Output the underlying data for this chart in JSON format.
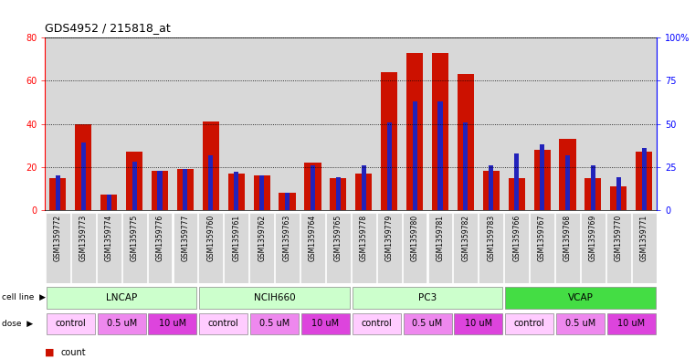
{
  "title": "GDS4952 / 215818_at",
  "samples": [
    "GSM1359772",
    "GSM1359773",
    "GSM1359774",
    "GSM1359775",
    "GSM1359776",
    "GSM1359777",
    "GSM1359760",
    "GSM1359761",
    "GSM1359762",
    "GSM1359763",
    "GSM1359764",
    "GSM1359765",
    "GSM1359778",
    "GSM1359779",
    "GSM1359780",
    "GSM1359781",
    "GSM1359782",
    "GSM1359783",
    "GSM1359766",
    "GSM1359767",
    "GSM1359768",
    "GSM1359769",
    "GSM1359770",
    "GSM1359771"
  ],
  "counts": [
    15,
    40,
    7,
    27,
    18,
    19,
    41,
    17,
    16,
    8,
    22,
    15,
    17,
    64,
    73,
    73,
    63,
    18,
    15,
    28,
    33,
    15,
    11,
    27
  ],
  "percentiles_pct": [
    20,
    39,
    9,
    28,
    23,
    24,
    32,
    22,
    20,
    10,
    26,
    19,
    26,
    51,
    63,
    63,
    51,
    26,
    33,
    38,
    32,
    26,
    19,
    36
  ],
  "bar_color_red": "#cc1100",
  "bar_color_blue": "#2222bb",
  "ylim_left": [
    0,
    80
  ],
  "ylim_right": [
    0,
    100
  ],
  "yticks_left": [
    0,
    20,
    40,
    60,
    80
  ],
  "yticks_right": [
    0,
    25,
    50,
    75,
    100
  ],
  "ytick_labels_right": [
    "0",
    "25",
    "50",
    "75",
    "100%"
  ],
  "cell_lines": [
    {
      "name": "LNCAP",
      "start": 0,
      "end": 6,
      "color": "#ccffcc"
    },
    {
      "name": "NCIH660",
      "start": 6,
      "end": 12,
      "color": "#ccffcc"
    },
    {
      "name": "PC3",
      "start": 12,
      "end": 18,
      "color": "#ccffcc"
    },
    {
      "name": "VCAP",
      "start": 18,
      "end": 24,
      "color": "#44dd44"
    }
  ],
  "doses": [
    {
      "name": "control",
      "start": 0,
      "end": 2,
      "color": "#ffccff"
    },
    {
      "name": "0.5 uM",
      "start": 2,
      "end": 4,
      "color": "#ee88ee"
    },
    {
      "name": "10 uM",
      "start": 4,
      "end": 6,
      "color": "#dd44dd"
    },
    {
      "name": "control",
      "start": 6,
      "end": 8,
      "color": "#ffccff"
    },
    {
      "name": "0.5 uM",
      "start": 8,
      "end": 10,
      "color": "#ee88ee"
    },
    {
      "name": "10 uM",
      "start": 10,
      "end": 12,
      "color": "#dd44dd"
    },
    {
      "name": "control",
      "start": 12,
      "end": 14,
      "color": "#ffccff"
    },
    {
      "name": "0.5 uM",
      "start": 14,
      "end": 16,
      "color": "#ee88ee"
    },
    {
      "name": "10 uM",
      "start": 16,
      "end": 18,
      "color": "#dd44dd"
    },
    {
      "name": "control",
      "start": 18,
      "end": 20,
      "color": "#ffccff"
    },
    {
      "name": "0.5 uM",
      "start": 20,
      "end": 22,
      "color": "#ee88ee"
    },
    {
      "name": "10 uM",
      "start": 22,
      "end": 24,
      "color": "#dd44dd"
    }
  ]
}
